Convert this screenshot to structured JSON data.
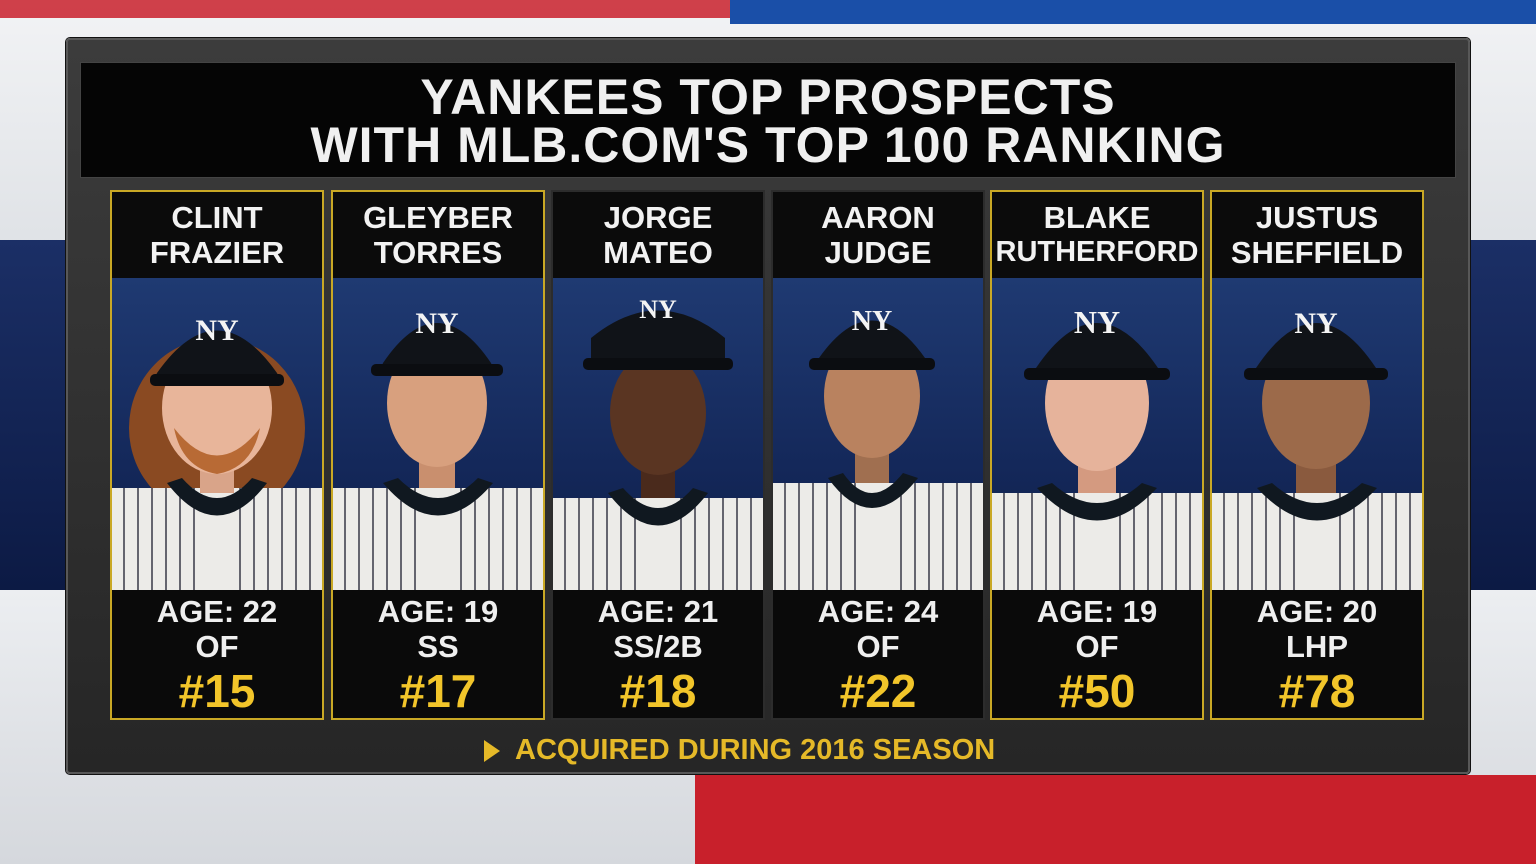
{
  "graphic": {
    "title_line1": "YANKEES TOP PROSPECTS",
    "title_line2": "WITH MLB.COM'S TOP 100 RANKING",
    "footer_note": "ACQUIRED DURING 2016 SEASON",
    "colors": {
      "accent_gold": "#e5b928",
      "rank_yellow": "#f2c52a",
      "panel": "#262626"
    }
  },
  "players": [
    {
      "first": "CLINT",
      "last": "FRAZIER",
      "age": "AGE: 22",
      "position": "OF",
      "rank": "#15",
      "acquired_2016": true
    },
    {
      "first": "GLEYBER",
      "last": "TORRES",
      "age": "AGE: 19",
      "position": "SS",
      "rank": "#17",
      "acquired_2016": true
    },
    {
      "first": "JORGE",
      "last": "MATEO",
      "age": "AGE: 21",
      "position": "SS/2B",
      "rank": "#18",
      "acquired_2016": false
    },
    {
      "first": "AARON",
      "last": "JUDGE",
      "age": "AGE: 24",
      "position": "OF",
      "rank": "#22",
      "acquired_2016": false
    },
    {
      "first": "BLAKE",
      "last": "RUTHERFORD",
      "age": "AGE: 19",
      "position": "OF",
      "rank": "#50",
      "acquired_2016": true
    },
    {
      "first": "JUSTUS",
      "last": "SHEFFIELD",
      "age": "AGE: 20",
      "position": "LHP",
      "rank": "#78",
      "acquired_2016": true
    }
  ]
}
